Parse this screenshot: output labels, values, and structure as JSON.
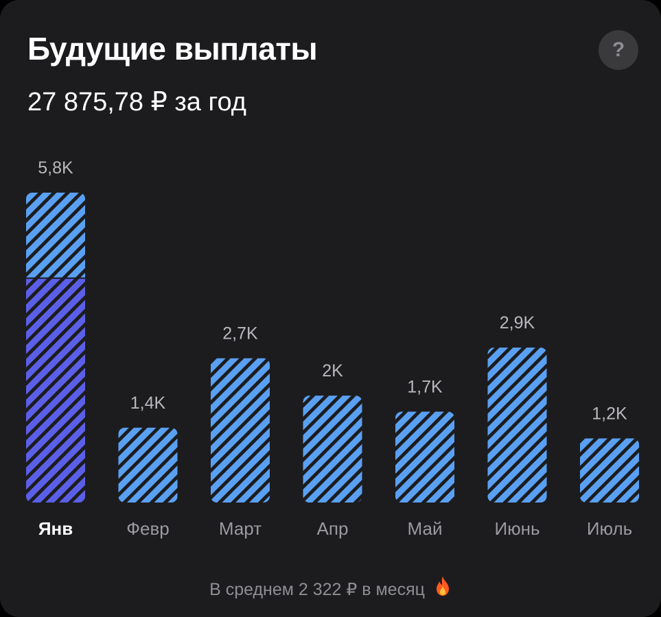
{
  "header": {
    "title": "Будущие выплаты",
    "subtitle": "27 875,78 ₽ за год",
    "help_label": "?"
  },
  "footer": {
    "text": "В среднем 2 322 ₽ в месяц"
  },
  "colors": {
    "bar": "#5aa0f2",
    "bar_selected_lower": "#5b5fe8",
    "stripe": "#1c1c1e",
    "value_label": "#b9b9bd",
    "month_label": "#9a9aa0",
    "month_label_selected": "#ffffff"
  },
  "chart_data": {
    "type": "bar",
    "title": "Будущие выплаты",
    "categories": [
      "Янв",
      "Февр",
      "Март",
      "Апр",
      "Май",
      "Июнь",
      "Июль"
    ],
    "value_labels": [
      "5,8K",
      "1,4K",
      "2,7K",
      "2K",
      "1,7K",
      "2,9K",
      "1,2K"
    ],
    "values": [
      5800,
      1400,
      2700,
      2000,
      1700,
      2900,
      1200
    ],
    "selected_category": "Янв",
    "selected_segments": [
      {
        "part": "upper",
        "value": 1600
      },
      {
        "part": "lower",
        "value": 4200
      }
    ],
    "ylim": [
      0,
      5800
    ],
    "grid": false,
    "legend": "none"
  }
}
